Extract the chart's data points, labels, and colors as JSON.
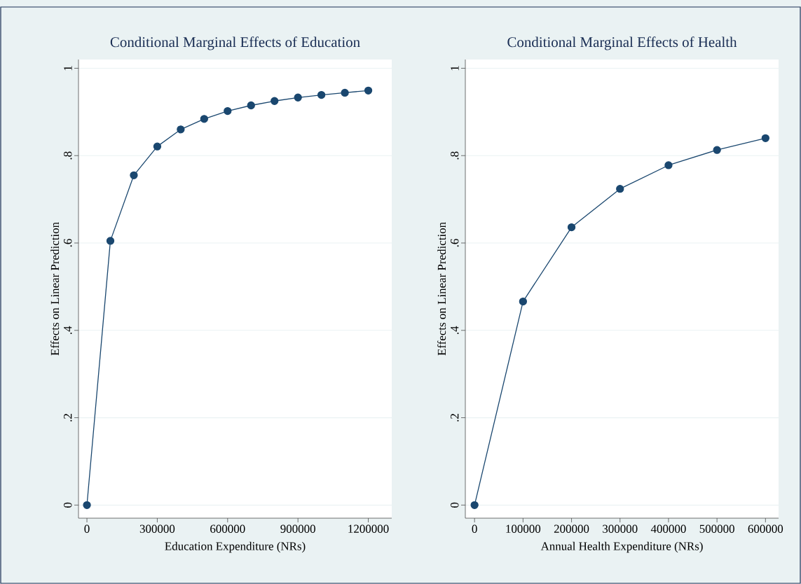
{
  "chart_data": [
    {
      "type": "line",
      "title": "Conditional Marginal Effects of Education",
      "xlabel": "Education Expenditure (NRs)",
      "ylabel": "Effects on Linear Prediction",
      "x": [
        0,
        100000,
        200000,
        300000,
        400000,
        500000,
        600000,
        700000,
        800000,
        900000,
        1000000,
        1100000,
        1200000
      ],
      "series": [
        {
          "color": "#1a476f",
          "values": [
            0,
            0.605,
            0.755,
            0.821,
            0.86,
            0.884,
            0.902,
            0.915,
            0.925,
            0.933,
            0.939,
            0.944,
            0.949
          ]
        }
      ],
      "xlim": [
        -36000,
        1300000
      ],
      "ylim": [
        -0.03,
        1.02
      ],
      "xticks": [
        0,
        300000,
        600000,
        900000,
        1200000
      ],
      "yticks": [
        0,
        {
          "value": 0.2,
          "label": ".2"
        },
        {
          "value": 0.4,
          "label": ".4"
        },
        {
          "value": 0.6,
          "label": ".6"
        },
        {
          "value": 0.8,
          "label": ".8"
        },
        1
      ],
      "grid": "y",
      "marker": "circle",
      "line_style": "solid"
    },
    {
      "type": "line",
      "title": "Conditional Marginal Effects of Health",
      "xlabel": "Annual Health Expenditure (NRs)",
      "ylabel": "Effects on Linear Prediction",
      "x": [
        0,
        100000,
        200000,
        300000,
        400000,
        500000,
        600000
      ],
      "series": [
        {
          "color": "#1a476f",
          "values": [
            0,
            0.466,
            0.636,
            0.724,
            0.778,
            0.813,
            0.84
          ]
        }
      ],
      "xlim": [
        -19000,
        627000
      ],
      "ylim": [
        -0.03,
        1.02
      ],
      "xticks": [
        0,
        100000,
        200000,
        300000,
        400000,
        500000,
        600000
      ],
      "yticks": [
        0,
        {
          "value": 0.2,
          "label": ".2"
        },
        {
          "value": 0.4,
          "label": ".4"
        },
        {
          "value": 0.6,
          "label": ".6"
        },
        {
          "value": 0.8,
          "label": ".8"
        },
        1
      ],
      "grid": "y",
      "marker": "circle",
      "line_style": "solid"
    }
  ]
}
